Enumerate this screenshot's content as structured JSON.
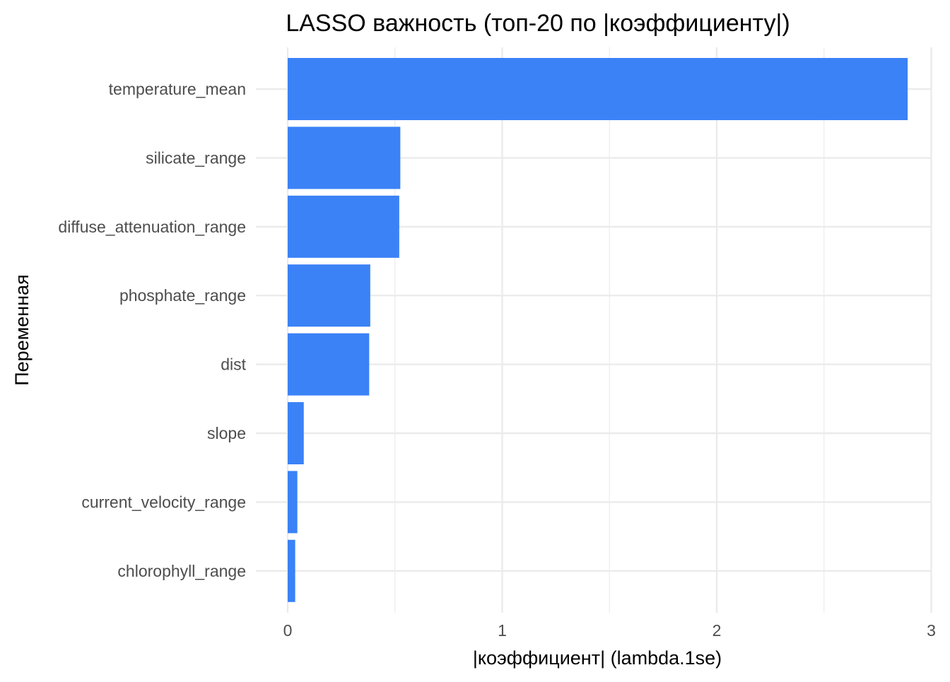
{
  "chart_data": {
    "type": "bar",
    "orientation": "horizontal",
    "title": "LASSO важность (топ-20 по |коэффициенту|)",
    "xlabel": "|коэффициент| (lambda.1se)",
    "ylabel": "Переменная",
    "categories": [
      "temperature_mean",
      "silicate_range",
      "diffuse_attenuation_range",
      "phosphate_range",
      "dist",
      "slope",
      "current_velocity_range",
      "chlorophyll_range"
    ],
    "values": [
      2.89,
      0.525,
      0.52,
      0.385,
      0.38,
      0.075,
      0.045,
      0.035
    ],
    "xlim": [
      0,
      3.02
    ],
    "xticks": [
      "0",
      "1",
      "2",
      "3"
    ],
    "grid": true,
    "legend": "none",
    "bar_color": "#3B82F6",
    "grid_color": "#EBEBEB"
  }
}
